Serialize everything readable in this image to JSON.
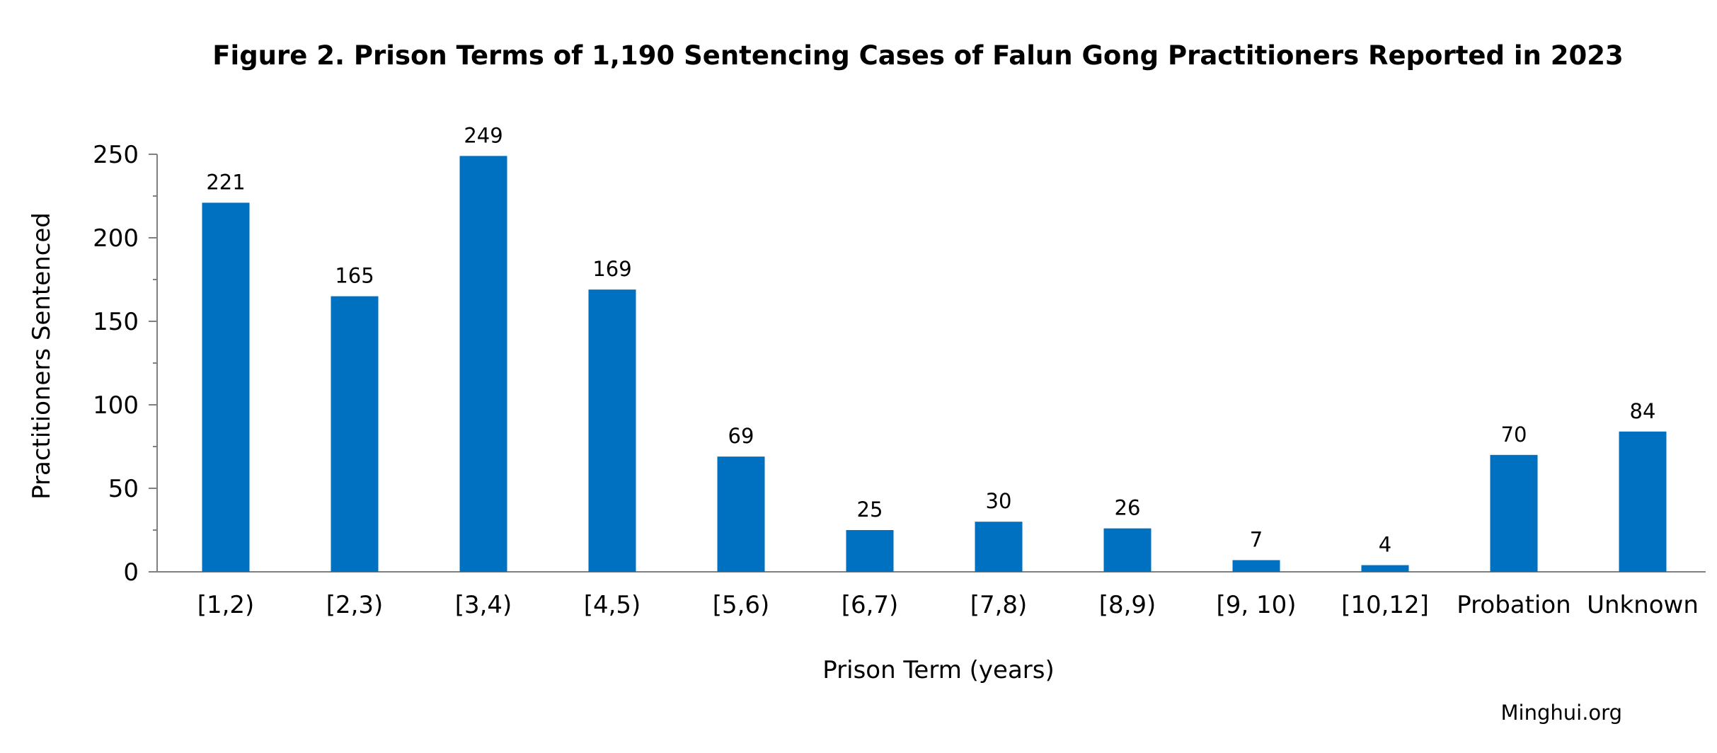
{
  "chart_data": {
    "type": "bar",
    "title": "Figure 2. Prison Terms of 1,190 Sentencing Cases of Falun Gong Practitioners Reported in 2023",
    "xlabel": "Prison Term (years)",
    "ylabel": "Practitioners Sentenced",
    "categories": [
      "[1,2)",
      "[2,3)",
      "[3,4)",
      "[4,5)",
      "[5,6)",
      "[6,7)",
      "[7,8)",
      "[8,9)",
      "[9, 10)",
      "[10,12]",
      "Probation",
      "Unknown"
    ],
    "values": [
      221,
      165,
      249,
      169,
      69,
      25,
      30,
      26,
      7,
      4,
      70,
      84
    ],
    "ylim": [
      0,
      250
    ],
    "yticks": [
      0,
      50,
      100,
      150,
      200,
      250
    ],
    "grid": false,
    "legend": "none",
    "bar_color": "#0070C0",
    "axis_color": "#808080"
  },
  "credit": "Minghui.org"
}
